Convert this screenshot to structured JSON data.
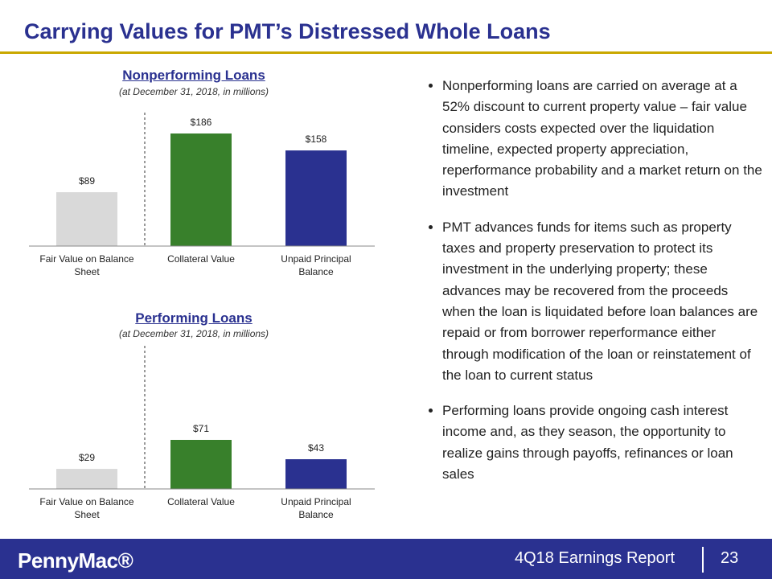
{
  "title": "Carrying Values for PMT’s Distressed Whole Loans",
  "chart_data": [
    {
      "type": "bar",
      "title": "Nonperforming Loans",
      "subtitle": "(at December 31, 2018, in millions)",
      "categories": [
        "Fair Value on Balance Sheet",
        "Collateral Value",
        "Unpaid Principal Balance"
      ],
      "values": [
        89,
        186,
        158
      ],
      "value_labels": [
        "$89",
        "$186",
        "$158"
      ],
      "colors": [
        "#d9d9d9",
        "#38802b",
        "#2a3190"
      ]
    },
    {
      "type": "bar",
      "title": "Performing Loans",
      "subtitle": "(at December 31, 2018, in millions)",
      "categories": [
        "Fair Value on Balance Sheet",
        "Collateral Value",
        "Unpaid Principal Balance"
      ],
      "values": [
        29,
        71,
        43
      ],
      "value_labels": [
        "$29",
        "$71",
        "$43"
      ],
      "colors": [
        "#d9d9d9",
        "#38802b",
        "#2a3190"
      ]
    }
  ],
  "bullets": [
    "Nonperforming loans are carried on average at a 52% discount to current property value – fair value considers costs expected over the liquidation timeline, expected property appreciation, reperformance probability and a market return on the investment",
    "PMT advances funds for items such as property taxes and property preservation to protect its investment in the underlying property; these advances may be recovered from the proceeds when the loan is liquidated before loan balances are repaid or from borrower reperformance either through modification of the loan or reinstatement of the loan to current status",
    "Performing loans provide ongoing cash interest income and, as they season, the opportunity to realize gains through payoffs, refinances or loan sales"
  ],
  "footer": {
    "logo": "PennyMac®",
    "report": "4Q18 Earnings Report",
    "page": "23"
  }
}
